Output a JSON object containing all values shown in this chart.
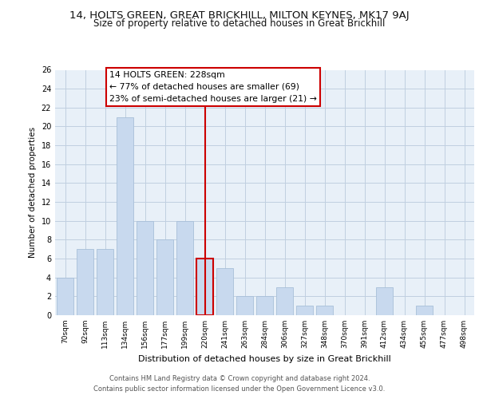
{
  "title": "14, HOLTS GREEN, GREAT BRICKHILL, MILTON KEYNES, MK17 9AJ",
  "subtitle": "Size of property relative to detached houses in Great Brickhill",
  "xlabel": "Distribution of detached houses by size in Great Brickhill",
  "ylabel": "Number of detached properties",
  "bar_labels": [
    "70sqm",
    "92sqm",
    "113sqm",
    "134sqm",
    "156sqm",
    "177sqm",
    "199sqm",
    "220sqm",
    "241sqm",
    "263sqm",
    "284sqm",
    "306sqm",
    "327sqm",
    "348sqm",
    "370sqm",
    "391sqm",
    "412sqm",
    "434sqm",
    "455sqm",
    "477sqm",
    "498sqm"
  ],
  "bar_values": [
    4,
    7,
    7,
    21,
    10,
    8,
    10,
    6,
    5,
    2,
    2,
    3,
    1,
    1,
    0,
    0,
    3,
    0,
    1,
    0,
    0
  ],
  "bar_color": "#c8d9ee",
  "bar_edge_color": "#a8bfd8",
  "highlight_index": 7,
  "highlight_line_color": "#cc0000",
  "ylim": [
    0,
    26
  ],
  "yticks": [
    0,
    2,
    4,
    6,
    8,
    10,
    12,
    14,
    16,
    18,
    20,
    22,
    24,
    26
  ],
  "annotation_line1": "14 HOLTS GREEN: 228sqm",
  "annotation_line2": "← 77% of detached houses are smaller (69)",
  "annotation_line3": "23% of semi-detached houses are larger (21) →",
  "annotation_box_color": "#ffffff",
  "annotation_box_edge_color": "#cc0000",
  "footer_text": "Contains HM Land Registry data © Crown copyright and database right 2024.\nContains public sector information licensed under the Open Government Licence v3.0.",
  "background_color": "#ffffff",
  "plot_bg_color": "#e8f0f8",
  "grid_color": "#c0cfe0"
}
